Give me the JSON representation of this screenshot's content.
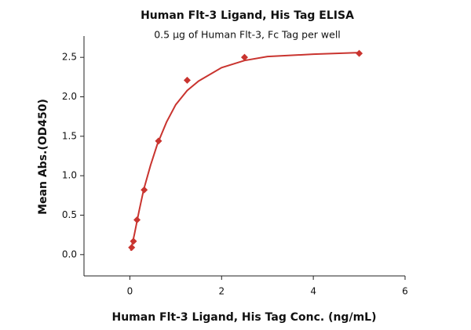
{
  "chart_data": {
    "type": "scatter",
    "title": "Human Flt-3 Ligand, His Tag ELISA",
    "subtitle": "0.5 μg of Human Flt-3, Fc Tag per well",
    "x_label": "Human Flt-3 Ligand, His Tag Conc. (ng/mL)",
    "y_label": "Mean Abs.(OD450)",
    "series": [
      {
        "color": "#c9342f",
        "x": [
          0.039,
          0.078,
          0.156,
          0.3125,
          0.625,
          1.25,
          2.5,
          5
        ],
        "values": [
          0.09,
          0.17,
          0.44,
          0.82,
          1.44,
          2.21,
          2.5,
          2.55
        ]
      }
    ],
    "fit": {
      "color": "#c9342f",
      "x": [
        0.02,
        0.1,
        0.2,
        0.3,
        0.45,
        0.6,
        0.8,
        1.0,
        1.25,
        1.5,
        2.0,
        2.5,
        3.0,
        4.0,
        5.0
      ],
      "values": [
        0.05,
        0.26,
        0.55,
        0.82,
        1.13,
        1.4,
        1.68,
        1.9,
        2.08,
        2.2,
        2.37,
        2.46,
        2.51,
        2.54,
        2.56
      ]
    },
    "xlim": [
      -1,
      6
    ],
    "ylim": [
      -0.27,
      2.77
    ],
    "xticks": [
      0,
      2,
      4,
      6
    ],
    "yticks": [
      {
        "value": 0,
        "label": "0.0"
      },
      0.5,
      {
        "value": 1,
        "label": "1.0"
      },
      1.5,
      {
        "value": 2,
        "label": "2.0"
      },
      2.5
    ]
  }
}
